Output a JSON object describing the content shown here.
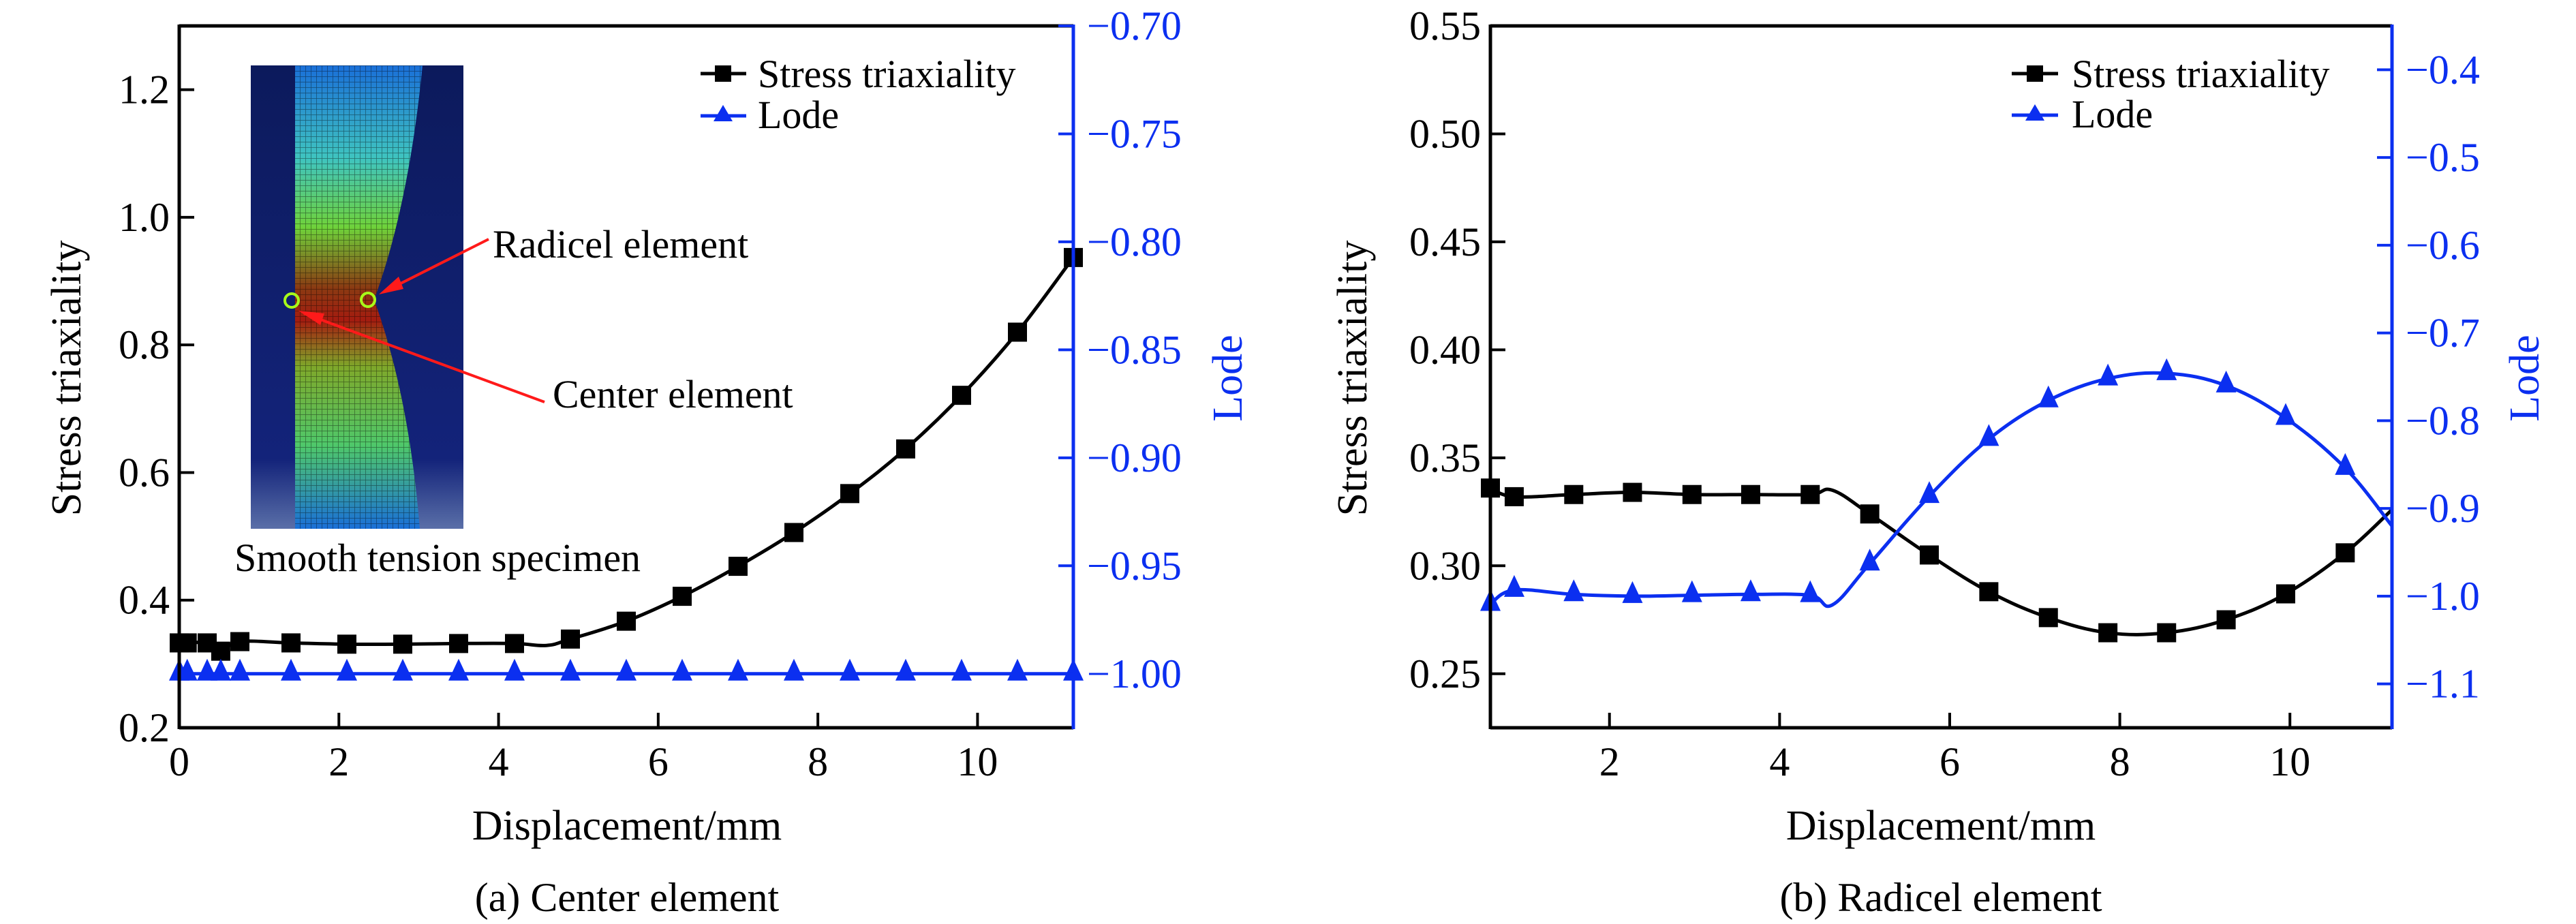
{
  "colors": {
    "stress": "#000000",
    "lode": "#0b2ff0",
    "arrow": "#ff1a1a",
    "marker_ring": "#a8ff1a"
  },
  "chart_data": [
    {
      "type": "line",
      "caption": "(a) Center element",
      "xlabel": "Displacement/mm",
      "ylabel": "Stress triaxiality",
      "y2label": "Lode",
      "xlim": [
        0,
        11.2
      ],
      "ylim": [
        0.2,
        1.3
      ],
      "y2lim": [
        -1.025,
        -0.7
      ],
      "xticks": [
        "0",
        "2",
        "4",
        "6",
        "8",
        "10"
      ],
      "yticks": [
        "0.2",
        "0.4",
        "0.6",
        "0.8",
        "1.0",
        "1.2"
      ],
      "y2ticks": [
        "−1.00",
        "−0.95",
        "−0.90",
        "−0.85",
        "−0.80",
        "−0.75",
        "−0.70"
      ],
      "legend": {
        "position": "top-right",
        "entries": [
          "Stress triaxiality",
          "Lode"
        ]
      },
      "series": [
        {
          "name": "Stress triaxiality",
          "axis": "left",
          "marker": "square",
          "x": [
            0,
            0.1,
            0.35,
            0.52,
            0.76,
            1.4,
            2.1,
            2.8,
            3.5,
            4.2,
            4.9,
            5.6,
            6.3,
            7.0,
            7.7,
            8.4,
            9.1,
            9.8,
            10.5,
            11.2
          ],
          "y": [
            0.333,
            0.333,
            0.333,
            0.32,
            0.335,
            0.333,
            0.331,
            0.331,
            0.332,
            0.332,
            0.339,
            0.367,
            0.406,
            0.453,
            0.506,
            0.567,
            0.637,
            0.721,
            0.82,
            0.937
          ],
          "line_only_points": [
            [
              4.6,
              0.329
            ]
          ]
        },
        {
          "name": "Lode",
          "axis": "right",
          "marker": "triangle",
          "x": [
            0,
            0.1,
            0.35,
            0.52,
            0.76,
            1.4,
            2.1,
            2.8,
            3.5,
            4.2,
            4.9,
            5.6,
            6.3,
            7.0,
            7.7,
            8.4,
            9.1,
            9.8,
            10.5,
            11.2
          ],
          "y": [
            -1.0,
            -1.0,
            -1.0,
            -1.0,
            -1.0,
            -1.0,
            -1.0,
            -1.0,
            -1.0,
            -1.0,
            -1.0,
            -1.0,
            -1.0,
            -1.0,
            -1.0,
            -1.0,
            -1.0,
            -1.0,
            -1.0,
            -1.0
          ]
        }
      ],
      "inset": {
        "caption": "Smooth tension specimen",
        "annotations": [
          "Radicel element",
          "Center element"
        ]
      }
    },
    {
      "type": "line",
      "caption": "(b) Radicel element",
      "xlabel": "Displacement/mm",
      "ylabel": "Stress triaxiality",
      "y2label": "Lode",
      "xlim": [
        0.6,
        11.2
      ],
      "ylim": [
        0.225,
        0.55
      ],
      "y2lim": [
        -1.15,
        -0.35
      ],
      "xticks": [
        "2",
        "4",
        "6",
        "8",
        "10"
      ],
      "yticks": [
        "0.25",
        "0.30",
        "0.35",
        "0.40",
        "0.45",
        "0.50",
        "0.55"
      ],
      "y2ticks": [
        "−1.1",
        "−1.0",
        "−0.9",
        "−0.8",
        "−0.7",
        "−0.6",
        "−0.5",
        "−0.4"
      ],
      "legend": {
        "position": "top-right",
        "entries": [
          "Stress triaxiality",
          "Lode"
        ]
      },
      "series": [
        {
          "name": "Stress triaxiality",
          "axis": "left",
          "marker": "square",
          "x": [
            0.6,
            0.88,
            1.58,
            2.27,
            2.97,
            3.66,
            4.36,
            5.06,
            5.76,
            6.46,
            7.16,
            7.86,
            8.55,
            9.25,
            9.95,
            10.65
          ],
          "y": [
            0.336,
            0.332,
            0.333,
            0.334,
            0.333,
            0.333,
            0.333,
            0.324,
            0.305,
            0.288,
            0.276,
            0.269,
            0.269,
            0.275,
            0.287,
            0.306
          ],
          "line_only_points": [
            [
              4.62,
              0.335
            ],
            [
              11.2,
              0.326
            ]
          ]
        },
        {
          "name": "Lode",
          "axis": "right",
          "marker": "triangle",
          "x": [
            0.6,
            0.88,
            1.58,
            2.27,
            2.97,
            3.66,
            4.36,
            5.06,
            5.76,
            6.46,
            7.16,
            7.86,
            8.55,
            9.25,
            9.95,
            10.65
          ],
          "y": [
            -1.009,
            -0.993,
            -0.998,
            -1.0,
            -0.999,
            -0.998,
            -0.999,
            -0.963,
            -0.886,
            -0.821,
            -0.777,
            -0.752,
            -0.746,
            -0.76,
            -0.797,
            -0.854
          ],
          "line_only_points": [
            [
              4.62,
              -1.01
            ],
            [
              11.2,
              -0.92
            ]
          ]
        }
      ]
    }
  ]
}
